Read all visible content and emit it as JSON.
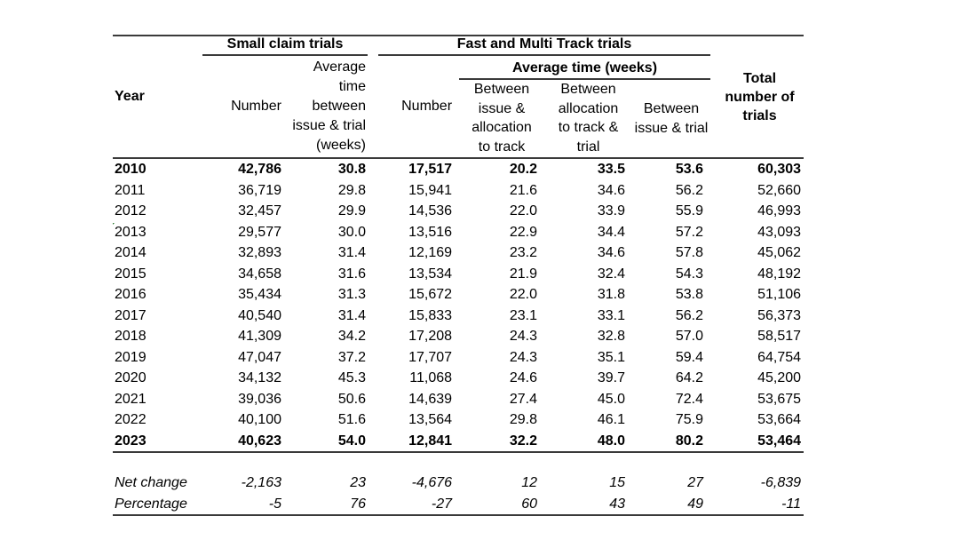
{
  "table": {
    "col_groups": {
      "small_claim": "Small claim trials",
      "fast_multi": "Fast and Multi Track trials",
      "avg_time_weeks": "Average time (weeks)"
    },
    "columns": {
      "year": "Year",
      "sc_number": "Number",
      "sc_avg_time": "Average\ntime\nbetween\nissue & trial\n(weeks)",
      "fm_number": "Number",
      "fm_issue_allocation": "Between\nissue &\nallocation\nto track",
      "fm_allocation_trial": "Between\nallocation\nto track &\ntrial",
      "fm_issue_trial": "Between\nissue & trial",
      "total": "Total\nnumber of\ntrials"
    },
    "rows": [
      {
        "year": "2010",
        "bold": true,
        "flag": false,
        "values": [
          "42,786",
          "30.8",
          "17,517",
          "20.2",
          "33.5",
          "53.6",
          "60,303"
        ]
      },
      {
        "year": "2011",
        "bold": false,
        "flag": false,
        "values": [
          "36,719",
          "29.8",
          "15,941",
          "21.6",
          "34.6",
          "56.2",
          "52,660"
        ]
      },
      {
        "year": "2012",
        "bold": false,
        "flag": false,
        "values": [
          "32,457",
          "29.9",
          "14,536",
          "22.0",
          "33.9",
          "55.9",
          "46,993"
        ]
      },
      {
        "year": "2013",
        "bold": false,
        "flag": true,
        "values": [
          "29,577",
          "30.0",
          "13,516",
          "22.9",
          "34.4",
          "57.2",
          "43,093"
        ]
      },
      {
        "year": "2014",
        "bold": false,
        "flag": false,
        "values": [
          "32,893",
          "31.4",
          "12,169",
          "23.2",
          "34.6",
          "57.8",
          "45,062"
        ]
      },
      {
        "year": "2015",
        "bold": false,
        "flag": false,
        "values": [
          "34,658",
          "31.6",
          "13,534",
          "21.9",
          "32.4",
          "54.3",
          "48,192"
        ]
      },
      {
        "year": "2016",
        "bold": false,
        "flag": false,
        "values": [
          "35,434",
          "31.3",
          "15,672",
          "22.0",
          "31.8",
          "53.8",
          "51,106"
        ]
      },
      {
        "year": "2017",
        "bold": false,
        "flag": false,
        "values": [
          "40,540",
          "31.4",
          "15,833",
          "23.1",
          "33.1",
          "56.2",
          "56,373"
        ]
      },
      {
        "year": "2018",
        "bold": false,
        "flag": false,
        "values": [
          "41,309",
          "34.2",
          "17,208",
          "24.3",
          "32.8",
          "57.0",
          "58,517"
        ]
      },
      {
        "year": "2019",
        "bold": false,
        "flag": false,
        "values": [
          "47,047",
          "37.2",
          "17,707",
          "24.3",
          "35.1",
          "59.4",
          "64,754"
        ]
      },
      {
        "year": "2020",
        "bold": false,
        "flag": false,
        "values": [
          "34,132",
          "45.3",
          "11,068",
          "24.6",
          "39.7",
          "64.2",
          "45,200"
        ]
      },
      {
        "year": "2021",
        "bold": false,
        "flag": false,
        "values": [
          "39,036",
          "50.6",
          "14,639",
          "27.4",
          "45.0",
          "72.4",
          "53,675"
        ]
      },
      {
        "year": "2022",
        "bold": false,
        "flag": false,
        "values": [
          "40,100",
          "51.6",
          "13,564",
          "29.8",
          "46.1",
          "75.9",
          "53,664"
        ]
      },
      {
        "year": "2023",
        "bold": true,
        "flag": false,
        "values": [
          "40,623",
          "54.0",
          "12,841",
          "32.2",
          "48.0",
          "80.2",
          "53,464"
        ]
      }
    ],
    "summary": [
      {
        "label": "Net change",
        "values": [
          "-2,163",
          "23",
          "-4,676",
          "12",
          "15",
          "27",
          "-6,839"
        ]
      },
      {
        "label": "Percentage",
        "values": [
          "-5",
          "76",
          "-27",
          "60",
          "43",
          "49",
          "-11"
        ]
      }
    ]
  },
  "colors": {
    "rule_line": "#3a3a3a",
    "flag_green": "#2e7d32",
    "text": "#000000",
    "background": "#ffffff"
  }
}
